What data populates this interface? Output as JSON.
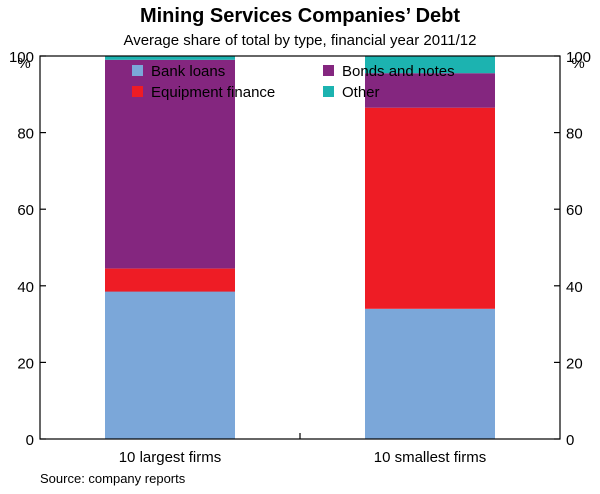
{
  "chart_data": {
    "type": "bar",
    "stacked": true,
    "title": "Mining Services Companies’ Debt",
    "subtitle": "Average share of total by type, financial year 2011/12",
    "ylabel_left": "%",
    "ylabel_right": "%",
    "ylim": [
      0,
      100
    ],
    "yticks": [
      0,
      20,
      40,
      60,
      80,
      100
    ],
    "categories": [
      "10 largest firms",
      "10 smallest firms"
    ],
    "series": [
      {
        "name": "Bank loans",
        "color": "#7BA7D9",
        "values": [
          38.5,
          34
        ]
      },
      {
        "name": "Equipment finance",
        "color": "#EE1C25",
        "values": [
          6,
          52.5
        ]
      },
      {
        "name": "Bonds and notes",
        "color": "#84267F",
        "values": [
          54.5,
          9
        ]
      },
      {
        "name": "Other",
        "color": "#1CB3B0",
        "values": [
          1,
          4.5
        ]
      }
    ],
    "legend": [
      {
        "name": "Bank loans",
        "color": "#7BA7D9"
      },
      {
        "name": "Bonds and notes",
        "color": "#84267F"
      },
      {
        "name": "Equipment finance",
        "color": "#EE1C25"
      },
      {
        "name": "Other",
        "color": "#1CB3B0"
      }
    ],
    "legend_position": "top",
    "source": "Source: company reports"
  }
}
